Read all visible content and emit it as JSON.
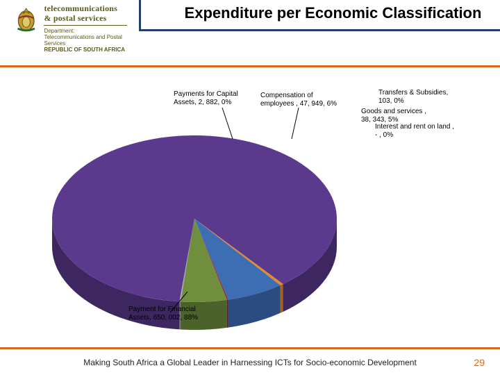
{
  "colors": {
    "accent_navy": "#233e6a",
    "accent_orange": "#d46a1f",
    "background": "#ffffff"
  },
  "header": {
    "brand_line1": "telecommunications",
    "brand_line2": "& postal services",
    "dept_label1": "Department:",
    "dept_label2": "Telecommunications and Postal Services",
    "dept_label3": "REPUBLIC OF SOUTH AFRICA",
    "title": "Expenditure per Economic Classification"
  },
  "chart": {
    "type": "pie",
    "title_fontsize": 22,
    "label_fontsize": 10,
    "aspect": "3d-tilted",
    "background_color": "#ffffff",
    "label_leader_color": "#000000",
    "slices": [
      {
        "name": "Payment for Financial Assets",
        "value": 650002,
        "pct": 88,
        "color": "#5b3a8e",
        "side_color": "#3e2761",
        "label": "Payment for Financial\nAssets,  650, 002, 88%"
      },
      {
        "name": "Payments for Capital Assets",
        "value": 2882,
        "pct": 0,
        "color": "#e68a2e",
        "side_color": "#a5611d",
        "label": "Payments for Capital\nAssets,  2, 882, 0%"
      },
      {
        "name": "Compensation of employees",
        "value": 47949,
        "pct": 6,
        "color": "#3d6db3",
        "side_color": "#2a4c80",
        "label": "Compensation of\nemployees ,  47, 949, 6%"
      },
      {
        "name": "Transfers & Subsidies",
        "value": 103,
        "pct": 0,
        "color": "#8f2f3a",
        "side_color": "#5e1f27",
        "label": "Transfers & Subsidies,\n103, 0%"
      },
      {
        "name": "Goods and services",
        "value": 38343,
        "pct": 5,
        "color": "#6f8f3f",
        "side_color": "#4c622b",
        "label": "Goods and services ,\n38, 343, 5%"
      },
      {
        "name": "Interest and rent on land",
        "value": 0,
        "pct": 0,
        "color": "#b0b0b0",
        "side_color": "#7a7a7a",
        "label": "Interest and rent on land ,\n- , 0%"
      }
    ]
  },
  "footer": {
    "tagline": "Making South Africa a Global Leader in Harnessing ICTs for Socio-economic Development",
    "page_number": "29"
  }
}
